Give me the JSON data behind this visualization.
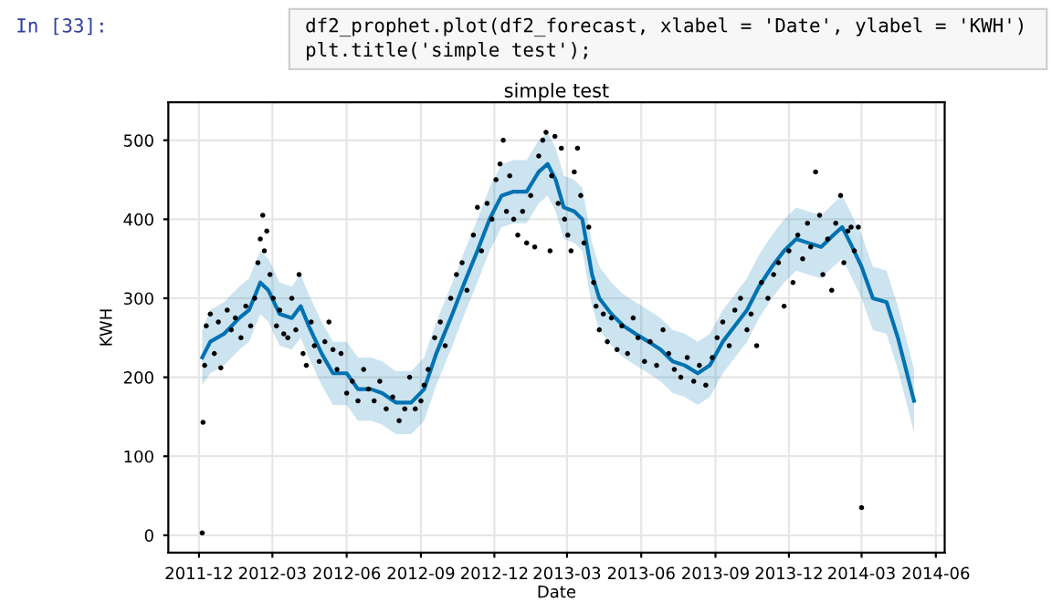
{
  "chart_data": {
    "type": "line",
    "title": "simple test",
    "xlabel": "Date",
    "ylabel": "KWH",
    "annotations": [
      "In [33]:",
      "df2_prophet.plot(df2_forecast, xlabel = 'Date', ylabel = 'KWH')",
      "plt.title('simple test');"
    ],
    "xlim": [
      "2011-10-24",
      "2014-06-12"
    ],
    "ylim": [
      -22,
      548
    ],
    "xticks": [
      "2011-12",
      "2012-03",
      "2012-06",
      "2012-09",
      "2012-12",
      "2013-03",
      "2013-06",
      "2013-09",
      "2013-12",
      "2014-03",
      "2014-06"
    ],
    "yticks": [
      0,
      100,
      200,
      300,
      400,
      500
    ],
    "grid": true,
    "legend": false,
    "series": [
      {
        "color": "#0072b2",
        "marker": "none",
        "line_style": "solid",
        "x": [
          "2011-12-05",
          "2011-12-15",
          "2012-01-01",
          "2012-01-20",
          "2012-02-01",
          "2012-02-15",
          "2012-02-25",
          "2012-03-10",
          "2012-03-25",
          "2012-04-05",
          "2012-04-15",
          "2012-05-01",
          "2012-05-15",
          "2012-06-01",
          "2012-06-15",
          "2012-07-01",
          "2012-07-15",
          "2012-08-01",
          "2012-08-20",
          "2012-09-05",
          "2012-09-20",
          "2012-10-10",
          "2012-10-25",
          "2012-11-10",
          "2012-11-25",
          "2012-12-10",
          "2012-12-25",
          "2013-01-10",
          "2013-01-25",
          "2013-02-05",
          "2013-02-15",
          "2013-02-25",
          "2013-03-10",
          "2013-03-20",
          "2013-04-01",
          "2013-04-10",
          "2013-04-25",
          "2013-05-10",
          "2013-05-25",
          "2013-06-10",
          "2013-06-25",
          "2013-07-10",
          "2013-07-25",
          "2013-08-10",
          "2013-08-25",
          "2013-09-10",
          "2013-09-25",
          "2013-10-10",
          "2013-10-25",
          "2013-11-10",
          "2013-11-25",
          "2013-12-10",
          "2013-12-25",
          "2014-01-10",
          "2014-01-25",
          "2014-02-05",
          "2014-02-15",
          "2014-03-01",
          "2014-03-15",
          "2014-04-01",
          "2014-04-15",
          "2014-04-30",
          "2014-05-05"
        ],
        "values": [
          225,
          245,
          255,
          275,
          285,
          320,
          310,
          280,
          275,
          290,
          265,
          230,
          205,
          205,
          185,
          185,
          180,
          168,
          168,
          185,
          230,
          280,
          320,
          360,
          400,
          430,
          435,
          435,
          460,
          470,
          450,
          415,
          410,
          400,
          330,
          300,
          280,
          265,
          255,
          245,
          235,
          220,
          215,
          205,
          215,
          245,
          265,
          285,
          315,
          340,
          360,
          375,
          370,
          365,
          380,
          390,
          370,
          340,
          300,
          295,
          250,
          190,
          170
        ],
        "lower": [
          190,
          205,
          215,
          235,
          245,
          280,
          270,
          240,
          235,
          250,
          225,
          190,
          165,
          165,
          145,
          145,
          140,
          128,
          128,
          145,
          190,
          240,
          280,
          320,
          360,
          390,
          395,
          395,
          420,
          430,
          410,
          375,
          370,
          360,
          290,
          260,
          240,
          225,
          215,
          205,
          195,
          180,
          175,
          165,
          175,
          205,
          225,
          245,
          275,
          300,
          320,
          335,
          330,
          325,
          340,
          350,
          330,
          300,
          260,
          255,
          210,
          150,
          130
        ],
        "upper": [
          260,
          285,
          295,
          315,
          325,
          360,
          350,
          320,
          315,
          330,
          305,
          270,
          245,
          245,
          225,
          225,
          220,
          208,
          208,
          225,
          270,
          320,
          360,
          400,
          440,
          470,
          475,
          475,
          500,
          510,
          490,
          455,
          450,
          440,
          370,
          340,
          320,
          305,
          295,
          285,
          275,
          260,
          255,
          245,
          255,
          285,
          305,
          325,
          355,
          380,
          400,
          415,
          410,
          405,
          420,
          430,
          410,
          380,
          340,
          335,
          290,
          230,
          210
        ]
      },
      {
        "type": "scatter",
        "color": "#000000",
        "marker": "circle",
        "x": [
          "2011-12-05",
          "2011-12-06",
          "2011-12-08",
          "2011-12-10",
          "2011-12-15",
          "2011-12-20",
          "2011-12-25",
          "2011-12-28",
          "2012-01-05",
          "2012-01-10",
          "2012-01-15",
          "2012-01-22",
          "2012-01-28",
          "2012-02-03",
          "2012-02-08",
          "2012-02-12",
          "2012-02-15",
          "2012-02-18",
          "2012-02-20",
          "2012-02-23",
          "2012-02-27",
          "2012-03-02",
          "2012-03-06",
          "2012-03-10",
          "2012-03-15",
          "2012-03-20",
          "2012-03-25",
          "2012-03-30",
          "2012-04-03",
          "2012-04-08",
          "2012-04-12",
          "2012-04-18",
          "2012-04-22",
          "2012-04-28",
          "2012-05-05",
          "2012-05-10",
          "2012-05-15",
          "2012-05-20",
          "2012-05-25",
          "2012-06-01",
          "2012-06-08",
          "2012-06-15",
          "2012-06-22",
          "2012-06-28",
          "2012-07-05",
          "2012-07-12",
          "2012-07-20",
          "2012-07-28",
          "2012-08-05",
          "2012-08-12",
          "2012-08-18",
          "2012-08-25",
          "2012-09-01",
          "2012-09-05",
          "2012-09-10",
          "2012-09-18",
          "2012-09-25",
          "2012-10-01",
          "2012-10-08",
          "2012-10-15",
          "2012-10-22",
          "2012-10-28",
          "2012-11-05",
          "2012-11-10",
          "2012-11-15",
          "2012-11-22",
          "2012-11-28",
          "2012-12-03",
          "2012-12-08",
          "2012-12-12",
          "2012-12-16",
          "2012-12-20",
          "2012-12-25",
          "2012-12-30",
          "2013-01-05",
          "2013-01-10",
          "2013-01-15",
          "2013-01-20",
          "2013-01-25",
          "2013-01-30",
          "2013-02-03",
          "2013-02-08",
          "2013-02-10",
          "2013-02-14",
          "2013-02-18",
          "2013-02-22",
          "2013-02-26",
          "2013-03-02",
          "2013-03-06",
          "2013-03-10",
          "2013-03-14",
          "2013-03-18",
          "2013-03-22",
          "2013-03-28",
          "2013-04-03",
          "2013-04-06",
          "2013-04-10",
          "2013-04-15",
          "2013-04-20",
          "2013-04-25",
          "2013-05-02",
          "2013-05-08",
          "2013-05-15",
          "2013-05-22",
          "2013-05-28",
          "2013-06-05",
          "2013-06-12",
          "2013-06-20",
          "2013-06-28",
          "2013-07-05",
          "2013-07-12",
          "2013-07-20",
          "2013-07-28",
          "2013-08-05",
          "2013-08-12",
          "2013-08-20",
          "2013-08-28",
          "2013-09-03",
          "2013-09-10",
          "2013-09-18",
          "2013-09-25",
          "2013-10-02",
          "2013-10-10",
          "2013-10-15",
          "2013-10-22",
          "2013-10-28",
          "2013-11-05",
          "2013-11-12",
          "2013-11-18",
          "2013-11-25",
          "2013-12-01",
          "2013-12-06",
          "2013-12-12",
          "2013-12-18",
          "2013-12-24",
          "2013-12-28",
          "2014-01-03",
          "2014-01-08",
          "2014-01-12",
          "2014-01-18",
          "2014-01-23",
          "2014-01-28",
          "2014-02-03",
          "2014-02-07",
          "2014-02-12",
          "2014-02-16",
          "2014-02-20",
          "2014-02-25",
          "2014-03-01"
        ],
        "values": [
          3,
          143,
          215,
          265,
          280,
          230,
          270,
          212,
          285,
          260,
          275,
          250,
          290,
          265,
          300,
          345,
          375,
          405,
          360,
          385,
          330,
          300,
          265,
          285,
          255,
          250,
          300,
          260,
          330,
          230,
          215,
          270,
          240,
          220,
          245,
          270,
          235,
          210,
          230,
          180,
          195,
          170,
          210,
          185,
          170,
          195,
          160,
          175,
          145,
          160,
          200,
          160,
          170,
          190,
          210,
          250,
          270,
          240,
          300,
          330,
          345,
          310,
          380,
          415,
          360,
          420,
          400,
          450,
          470,
          500,
          410,
          455,
          400,
          380,
          410,
          370,
          430,
          365,
          480,
          500,
          510,
          360,
          455,
          505,
          420,
          490,
          400,
          380,
          360,
          460,
          490,
          430,
          370,
          390,
          320,
          290,
          260,
          280,
          245,
          275,
          235,
          265,
          230,
          275,
          250,
          220,
          245,
          215,
          260,
          230,
          210,
          200,
          225,
          195,
          215,
          190,
          225,
          250,
          270,
          240,
          285,
          300,
          260,
          280,
          240,
          320,
          300,
          330,
          345,
          290,
          360,
          320,
          380,
          350,
          395,
          365,
          460,
          405,
          330,
          375,
          310,
          395,
          430,
          345,
          385,
          390,
          360,
          390,
          35
        ]
      }
    ]
  }
}
